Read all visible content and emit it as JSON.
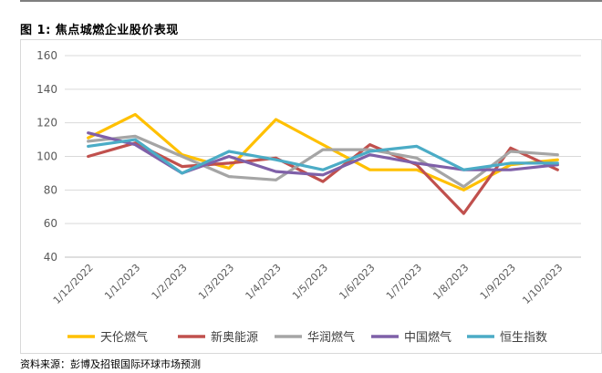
{
  "figure": {
    "title": "图 1: 焦点城燃企业股价表现",
    "source": "资料来源：彭博及招银国际环球市场预测"
  },
  "chart_data": {
    "type": "line",
    "title": "",
    "xlabel": "",
    "ylabel": "",
    "ylim": [
      40,
      160
    ],
    "yticks": [
      40,
      60,
      80,
      100,
      120,
      140,
      160
    ],
    "grid": true,
    "legend_position": "bottom",
    "categories": [
      "1/12/2022",
      "1/1/2023",
      "1/2/2023",
      "1/3/2023",
      "1/4/2023",
      "1/5/2023",
      "1/6/2023",
      "1/7/2023",
      "1/8/2023",
      "1/9/2023",
      "1/10/2023"
    ],
    "series": [
      {
        "name": "天伦燃气",
        "color": "#FFC000",
        "values": [
          111,
          125,
          101,
          93,
          122,
          107,
          92,
          92,
          80,
          95,
          98
        ]
      },
      {
        "name": "新奥能源",
        "color": "#C0504D",
        "values": [
          100,
          108,
          94,
          96,
          99,
          85,
          107,
          95,
          66,
          105,
          92
        ]
      },
      {
        "name": "华润燃气",
        "color": "#A5A5A5",
        "values": [
          109,
          112,
          100,
          88,
          86,
          104,
          104,
          99,
          82,
          103,
          101
        ]
      },
      {
        "name": "中国燃气",
        "color": "#7F60A8",
        "values": [
          114,
          107,
          90,
          100,
          91,
          89,
          101,
          96,
          92,
          92,
          95
        ]
      },
      {
        "name": "恒生指数",
        "color": "#4BACC6",
        "values": [
          106,
          110,
          90,
          103,
          98,
          92,
          103,
          106,
          92,
          96,
          96
        ]
      }
    ]
  }
}
